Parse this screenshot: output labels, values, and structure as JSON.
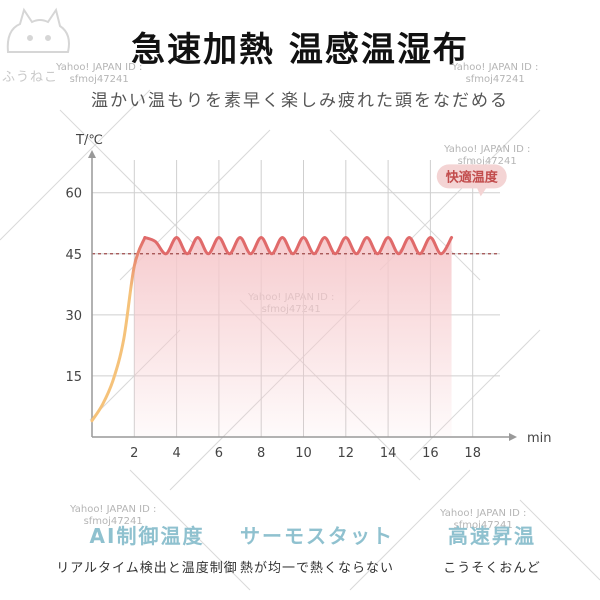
{
  "header": {
    "title": "急速加熱 温感温湿布",
    "subtitle": "温かい温もりを素早く楽しみ疲れた頭をなだめる",
    "logo_text": "ふうねこ"
  },
  "watermark": {
    "line1": "Yahoo! JAPAN ID :",
    "line2": "sfmoj47241"
  },
  "chart_data": {
    "type": "line",
    "ylabel": "T/℃",
    "xlabel": "min",
    "x_ticks": [
      2,
      4,
      6,
      8,
      10,
      12,
      14,
      16,
      18
    ],
    "y_ticks": [
      15,
      30,
      45,
      60
    ],
    "xlim": [
      0,
      20
    ],
    "ylim": [
      0,
      70
    ],
    "reference_line": 45,
    "annotation": "快適温度",
    "series": [
      {
        "x": [
          0,
          0.5,
          1.0,
          1.5,
          2.0,
          2.5,
          3.0,
          3.5,
          4.0,
          4.5,
          5.0,
          5.5,
          6.0,
          6.5,
          7.0,
          7.5,
          8.0,
          8.5,
          9.0,
          9.5,
          10.0,
          10.5,
          11.0,
          11.5,
          12.0,
          12.5,
          13.0,
          13.5,
          14.0,
          14.5,
          15.0,
          15.5,
          16.0,
          16.5,
          17.0
        ],
        "y": [
          4,
          8,
          14,
          24,
          42,
          49,
          48,
          45,
          49,
          45,
          49,
          45,
          49,
          45,
          49,
          45,
          49,
          45,
          49,
          45,
          49,
          45,
          49,
          45,
          49,
          45,
          49,
          45,
          49,
          45,
          49,
          45,
          49,
          45,
          49
        ]
      }
    ],
    "colors": {
      "rise": "#f5c27a",
      "plateau": "#e06a6a",
      "fill": "#f6c9cc",
      "reference": "#a04a4a",
      "grid": "#cfcfcf",
      "axis": "#999999"
    }
  },
  "features": [
    {
      "title": "AI制御温度",
      "desc": "リアルタイム検出と温度制御"
    },
    {
      "title": "サーモスタット",
      "desc": "熱が均一で熱くならない"
    },
    {
      "title": "高速昇温",
      "desc": "こうそくおんど"
    }
  ]
}
